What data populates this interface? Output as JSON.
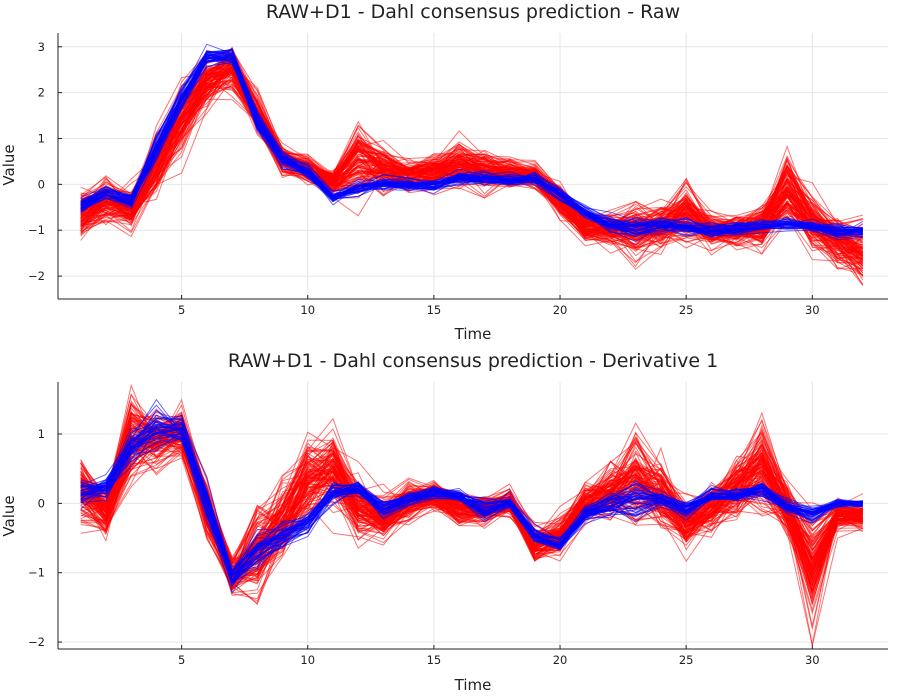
{
  "chart_data": [
    {
      "type": "line",
      "title": "RAW+D1 - Dahl consensus prediction - Raw",
      "xlabel": "Time",
      "ylabel": "Value",
      "xlim": [
        0.1,
        33
      ],
      "ylim": [
        -2.5,
        3.3
      ],
      "xticks": [
        5,
        10,
        15,
        20,
        25,
        30
      ],
      "yticks": [
        -2,
        -1,
        0,
        1,
        2,
        3
      ],
      "grid": true,
      "legend": "none",
      "x": [
        1,
        2,
        3,
        4,
        5,
        6,
        7,
        8,
        9,
        10,
        11,
        12,
        13,
        14,
        15,
        16,
        17,
        18,
        19,
        20,
        21,
        22,
        23,
        24,
        25,
        26,
        27,
        28,
        29,
        30,
        31,
        32
      ],
      "series_groups": [
        {
          "color": "#ff0000",
          "line_count": 120,
          "mean": [
            -0.65,
            -0.35,
            -0.55,
            0.45,
            1.45,
            2.25,
            2.55,
            1.5,
            0.55,
            0.35,
            0.05,
            0.55,
            0.35,
            0.2,
            0.3,
            0.45,
            0.3,
            0.25,
            0.2,
            -0.35,
            -0.95,
            -0.95,
            -1.0,
            -0.9,
            -0.6,
            -1.0,
            -1.0,
            -0.9,
            -0.15,
            -0.8,
            -1.2,
            -1.45
          ],
          "spread": [
            0.4,
            0.35,
            0.35,
            0.5,
            0.5,
            0.4,
            0.35,
            0.3,
            0.2,
            0.2,
            0.2,
            0.6,
            0.35,
            0.25,
            0.25,
            0.35,
            0.3,
            0.25,
            0.2,
            0.25,
            0.2,
            0.25,
            0.45,
            0.35,
            0.45,
            0.25,
            0.25,
            0.35,
            0.6,
            0.4,
            0.4,
            0.45
          ]
        },
        {
          "color": "#0000ff",
          "line_count": 40,
          "mean": [
            -0.45,
            -0.15,
            -0.35,
            0.8,
            1.9,
            2.8,
            2.8,
            1.4,
            0.6,
            0.3,
            -0.25,
            -0.05,
            0.05,
            0.0,
            0.0,
            0.15,
            0.15,
            0.1,
            0.15,
            -0.2,
            -0.6,
            -0.85,
            -0.95,
            -0.85,
            -0.9,
            -1.0,
            -0.95,
            -0.9,
            -0.85,
            -0.9,
            -1.0,
            -1.0
          ],
          "spread": [
            0.12,
            0.12,
            0.12,
            0.2,
            0.2,
            0.15,
            0.15,
            0.2,
            0.15,
            0.12,
            0.1,
            0.12,
            0.12,
            0.1,
            0.1,
            0.1,
            0.1,
            0.1,
            0.1,
            0.1,
            0.12,
            0.15,
            0.2,
            0.15,
            0.12,
            0.12,
            0.12,
            0.1,
            0.1,
            0.1,
            0.12,
            0.12
          ]
        }
      ]
    },
    {
      "type": "line",
      "title": "RAW+D1 - Dahl consensus prediction - Derivative 1",
      "xlabel": "Time",
      "ylabel": "Value",
      "xlim": [
        0.1,
        33
      ],
      "ylim": [
        -2.1,
        1.75
      ],
      "xticks": [
        5,
        10,
        15,
        20,
        25,
        30
      ],
      "yticks": [
        -2,
        -1,
        0,
        1
      ],
      "grid": true,
      "legend": "none",
      "x": [
        1,
        2,
        3,
        4,
        5,
        6,
        7,
        8,
        9,
        10,
        11,
        12,
        13,
        14,
        15,
        16,
        17,
        18,
        19,
        20,
        21,
        22,
        23,
        24,
        25,
        26,
        27,
        28,
        29,
        30,
        31,
        32
      ],
      "series_groups": [
        {
          "color": "#ff0000",
          "line_count": 120,
          "mean": [
            0.15,
            -0.15,
            0.9,
            0.9,
            1.0,
            -0.1,
            -1.05,
            -0.8,
            -0.3,
            0.3,
            0.45,
            -0.1,
            -0.25,
            0.0,
            0.1,
            -0.1,
            -0.1,
            0.0,
            -0.6,
            -0.5,
            -0.05,
            0.1,
            0.3,
            0.1,
            -0.3,
            -0.1,
            0.2,
            0.5,
            -0.1,
            -0.9,
            -0.2,
            -0.2
          ],
          "spread": [
            0.35,
            0.25,
            0.45,
            0.3,
            0.25,
            0.3,
            0.2,
            0.5,
            0.4,
            0.4,
            0.4,
            0.3,
            0.25,
            0.2,
            0.15,
            0.15,
            0.15,
            0.15,
            0.2,
            0.2,
            0.2,
            0.3,
            0.5,
            0.35,
            0.25,
            0.25,
            0.3,
            0.5,
            0.25,
            0.6,
            0.15,
            0.15
          ]
        },
        {
          "color": "#0000ff",
          "line_count": 40,
          "mean": [
            0.15,
            0.2,
            0.8,
            1.05,
            1.05,
            0.0,
            -1.1,
            -0.7,
            -0.5,
            -0.3,
            0.15,
            0.2,
            -0.1,
            0.05,
            0.15,
            0.1,
            -0.1,
            0.0,
            -0.45,
            -0.6,
            -0.15,
            -0.05,
            0.0,
            0.05,
            -0.1,
            0.1,
            0.1,
            0.2,
            -0.05,
            -0.15,
            0.0,
            0.0
          ],
          "spread": [
            0.15,
            0.12,
            0.2,
            0.25,
            0.15,
            0.2,
            0.15,
            0.2,
            0.15,
            0.15,
            0.1,
            0.1,
            0.1,
            0.08,
            0.08,
            0.08,
            0.12,
            0.08,
            0.1,
            0.1,
            0.1,
            0.15,
            0.2,
            0.1,
            0.1,
            0.08,
            0.08,
            0.1,
            0.08,
            0.1,
            0.05,
            0.05
          ]
        }
      ]
    }
  ]
}
